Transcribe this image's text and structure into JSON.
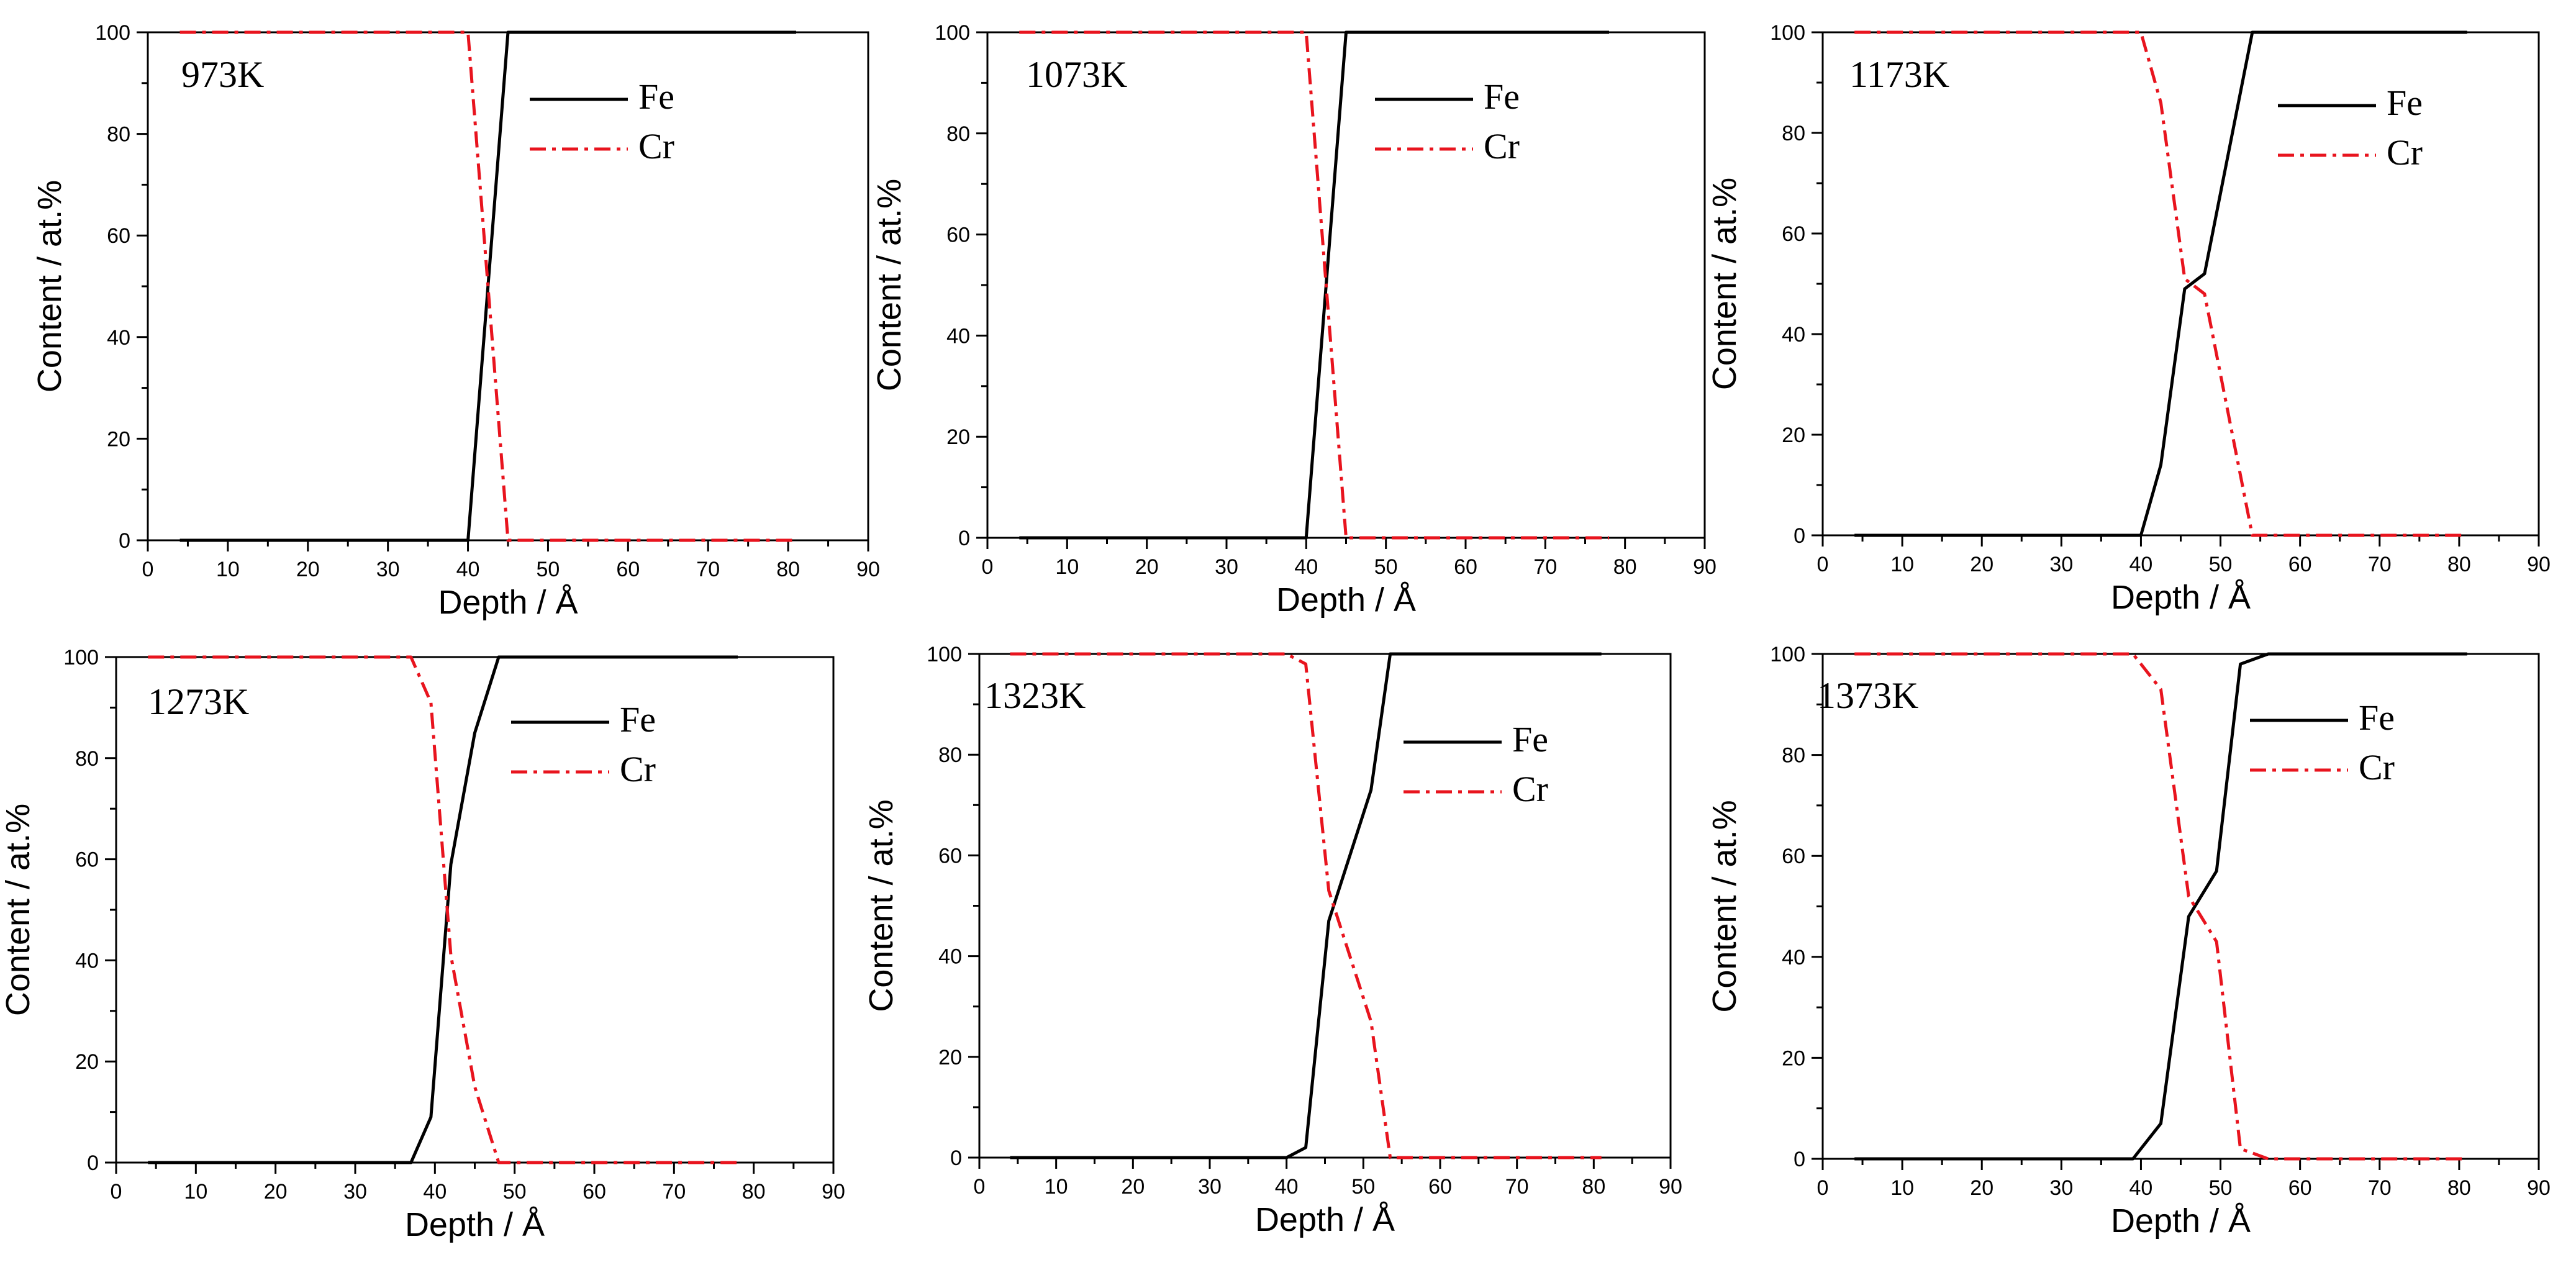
{
  "colors": {
    "fe": "#000000",
    "cr": "#e8141e",
    "axis": "#000000"
  },
  "chart_data": [
    {
      "type": "line",
      "title": "973K",
      "xlabel": "Depth / Å",
      "ylabel": "Content / at.%",
      "xlim": [
        0,
        90
      ],
      "ylim": [
        0,
        100
      ],
      "xticks": [
        0,
        10,
        20,
        30,
        40,
        50,
        60,
        70,
        80,
        90
      ],
      "yticks": [
        0,
        20,
        40,
        60,
        80,
        100
      ],
      "legend": [
        "Fe",
        "Cr"
      ],
      "legend_position": "top-right",
      "series": [
        {
          "name": "Fe",
          "x": [
            4,
            40,
            45,
            81
          ],
          "values": [
            0,
            0,
            100,
            100
          ]
        },
        {
          "name": "Cr",
          "x": [
            4,
            40,
            45,
            81
          ],
          "values": [
            100,
            100,
            0,
            0
          ]
        }
      ]
    },
    {
      "type": "line",
      "title": "1073K",
      "xlabel": "Depth / Å",
      "ylabel": "Content / at.%",
      "xlim": [
        0,
        90
      ],
      "ylim": [
        0,
        100
      ],
      "xticks": [
        0,
        10,
        20,
        30,
        40,
        50,
        60,
        70,
        80,
        90
      ],
      "yticks": [
        0,
        20,
        40,
        60,
        80,
        100
      ],
      "legend": [
        "Fe",
        "Cr"
      ],
      "legend_position": "top-right",
      "series": [
        {
          "name": "Fe",
          "x": [
            4,
            40,
            45,
            78
          ],
          "values": [
            0,
            0,
            100,
            100
          ]
        },
        {
          "name": "Cr",
          "x": [
            4,
            40,
            45,
            78
          ],
          "values": [
            100,
            100,
            0,
            0
          ]
        }
      ]
    },
    {
      "type": "line",
      "title": "1173K",
      "xlabel": "Depth / Å",
      "ylabel": "Content / at.%",
      "xlim": [
        0,
        90
      ],
      "ylim": [
        0,
        100
      ],
      "xticks": [
        0,
        10,
        20,
        30,
        40,
        50,
        60,
        70,
        80,
        90
      ],
      "yticks": [
        0,
        20,
        40,
        60,
        80,
        100
      ],
      "legend": [
        "Fe",
        "Cr"
      ],
      "legend_position": "top-right",
      "series": [
        {
          "name": "Fe",
          "x": [
            4,
            40,
            42.5,
            45.5,
            48,
            54,
            81
          ],
          "values": [
            0,
            0,
            14,
            49,
            52,
            100,
            100
          ]
        },
        {
          "name": "Cr",
          "x": [
            4,
            40,
            42.5,
            45.5,
            48,
            54,
            81
          ],
          "values": [
            100,
            100,
            86,
            51,
            48,
            0,
            0
          ]
        }
      ]
    },
    {
      "type": "line",
      "title": "1273K",
      "xlabel": "Depth / Å",
      "ylabel": "Content / at.%",
      "xlim": [
        0,
        90
      ],
      "ylim": [
        0,
        100
      ],
      "xticks": [
        0,
        10,
        20,
        30,
        40,
        50,
        60,
        70,
        80,
        90
      ],
      "yticks": [
        0,
        20,
        40,
        60,
        80,
        100
      ],
      "legend": [
        "Fe",
        "Cr"
      ],
      "legend_position": "top-right",
      "series": [
        {
          "name": "Fe",
          "x": [
            4,
            37,
            39.5,
            42,
            45,
            48,
            78
          ],
          "values": [
            0,
            0,
            9,
            59,
            85,
            100,
            100
          ]
        },
        {
          "name": "Cr",
          "x": [
            4,
            37,
            39.5,
            42,
            45,
            48,
            78
          ],
          "values": [
            100,
            100,
            91,
            41,
            15,
            0,
            0
          ]
        }
      ]
    },
    {
      "type": "line",
      "title": "1323K",
      "xlabel": "Depth / Å",
      "ylabel": "Content / at.%",
      "xlim": [
        0,
        90
      ],
      "ylim": [
        0,
        100
      ],
      "xticks": [
        0,
        10,
        20,
        30,
        40,
        50,
        60,
        70,
        80,
        90
      ],
      "yticks": [
        0,
        20,
        40,
        60,
        80,
        100
      ],
      "legend": [
        "Fe",
        "Cr"
      ],
      "legend_position": "top-right",
      "series": [
        {
          "name": "Fe",
          "x": [
            4,
            40,
            42.5,
            45.5,
            51,
            53.5,
            81
          ],
          "values": [
            0,
            0,
            2,
            47,
            73,
            100,
            100
          ]
        },
        {
          "name": "Cr",
          "x": [
            4,
            40,
            42.5,
            45.5,
            51,
            53.5,
            81
          ],
          "values": [
            100,
            100,
            98,
            53,
            27,
            0,
            0
          ]
        }
      ]
    },
    {
      "type": "line",
      "title": "1373K",
      "xlabel": "Depth / Å",
      "ylabel": "Content / at.%",
      "xlim": [
        0,
        90
      ],
      "ylim": [
        0,
        100
      ],
      "xticks": [
        0,
        10,
        20,
        30,
        40,
        50,
        60,
        70,
        80,
        90
      ],
      "yticks": [
        0,
        20,
        40,
        60,
        80,
        100
      ],
      "legend": [
        "Fe",
        "Cr"
      ],
      "legend_position": "top-right",
      "series": [
        {
          "name": "Fe",
          "x": [
            4,
            39,
            42.5,
            46,
            49.5,
            52.5,
            56,
            81
          ],
          "values": [
            0,
            0,
            7,
            48,
            57,
            98,
            100,
            100
          ]
        },
        {
          "name": "Cr",
          "x": [
            4,
            39,
            42.5,
            46,
            49.5,
            52.5,
            56,
            81
          ],
          "values": [
            100,
            100,
            93,
            52,
            43,
            2,
            0,
            0
          ]
        }
      ]
    }
  ]
}
